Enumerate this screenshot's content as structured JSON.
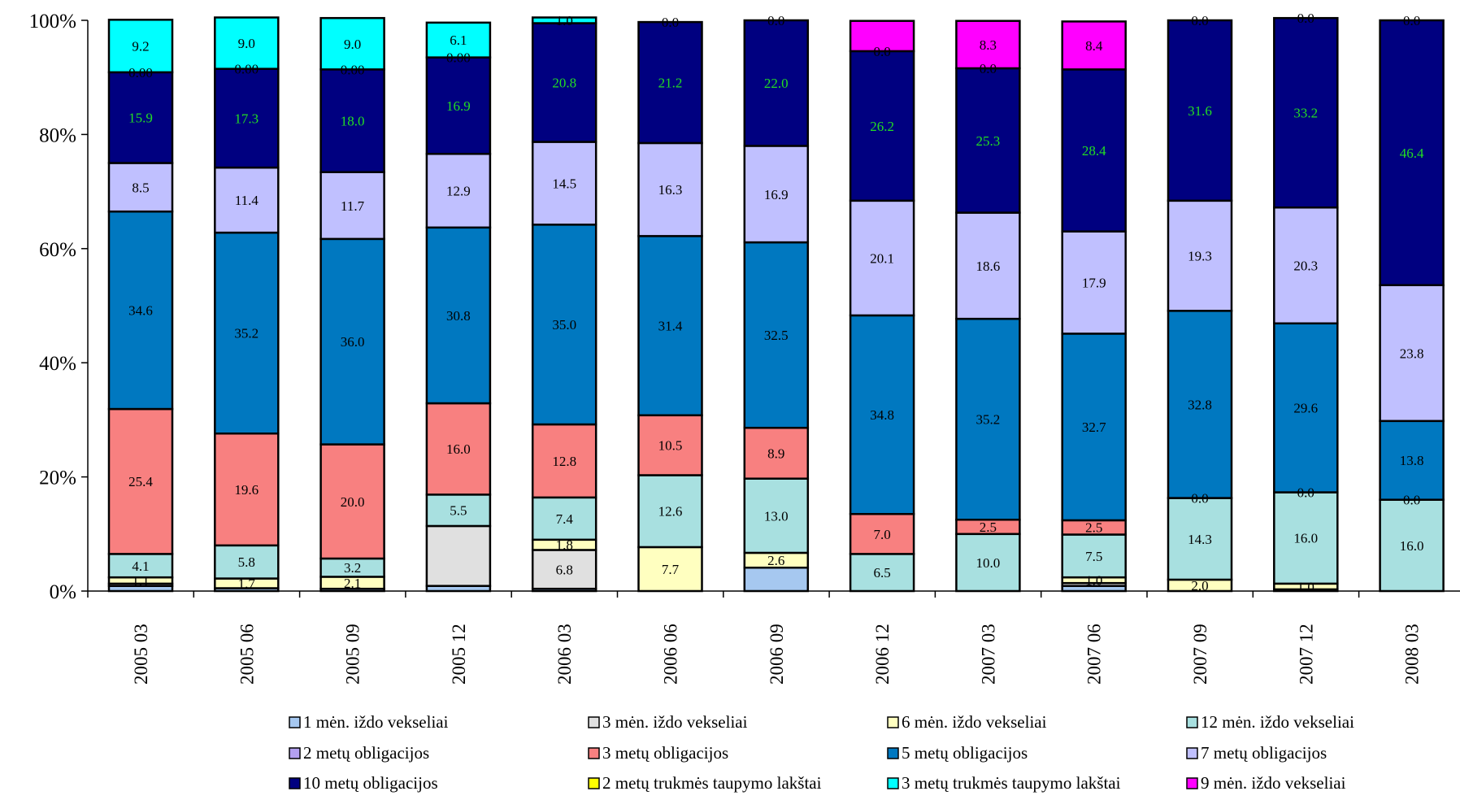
{
  "chart_data": {
    "type": "bar",
    "stacked": true,
    "percent_stacked": true,
    "categories": [
      "2005 03",
      "2005 06",
      "2005 09",
      "2005 12",
      "2006 03",
      "2006 06",
      "2006 09",
      "2006 12",
      "2007 03",
      "2007 06",
      "2007 09",
      "2007 12",
      "2008 03"
    ],
    "y_ticks": [
      "0%",
      "20%",
      "40%",
      "60%",
      "80%",
      "100%"
    ],
    "ylim": [
      0,
      100
    ],
    "legend_position": "bottom",
    "series": [
      {
        "name": "1 mėn. iždo vekseliai",
        "color": "#a6c8f0",
        "values": [
          0.9,
          0.5,
          0.4,
          0.9,
          0.4,
          0.0,
          4.1,
          0.0,
          0.0,
          0.9,
          0.0,
          0.3,
          0.0
        ],
        "labels": [
          "",
          "",
          "",
          "",
          "",
          "",
          "",
          "",
          "",
          "",
          "",
          "",
          ""
        ]
      },
      {
        "name": "3 mėn. iždo vekseliai",
        "color": "#e0e0e0",
        "values": [
          0.4,
          0.0,
          0.0,
          10.5,
          6.8,
          0.0,
          0.0,
          0.0,
          0.0,
          0.5,
          0.0,
          0.0,
          0.0
        ],
        "labels": [
          "",
          "",
          "",
          "",
          "6.8",
          "",
          "",
          "",
          "",
          "",
          "",
          "",
          ""
        ]
      },
      {
        "name": "6 mėn. iždo vekseliai",
        "color": "#ffffc0",
        "values": [
          1.1,
          1.7,
          2.1,
          0.0,
          1.8,
          7.7,
          2.6,
          0.0,
          0.0,
          1.0,
          2.0,
          1.0,
          0.0
        ],
        "labels": [
          "1.1",
          "1.7",
          "2.1",
          "",
          "1.8",
          "7.7",
          "2.6",
          "",
          "",
          "1.0",
          "2.0",
          "1.0",
          ""
        ]
      },
      {
        "name": "12 mėn. iždo vekseliai",
        "color": "#a8e0e0",
        "values": [
          4.1,
          5.8,
          3.2,
          5.5,
          7.4,
          12.6,
          13.0,
          6.5,
          10.0,
          7.5,
          14.3,
          16.0,
          16.0
        ],
        "labels": [
          "4.1",
          "5.8",
          "3.2",
          "5.5",
          "7.4",
          "12.6",
          "13.0",
          "6.5",
          "10.0",
          "7.5",
          "14.3",
          "16.0",
          "16.0"
        ]
      },
      {
        "name": "2 metų obligacijos",
        "color": "#b3a0f0",
        "values": [
          0,
          0,
          0,
          0,
          0,
          0,
          0,
          0,
          0,
          0,
          0,
          0,
          0
        ],
        "labels": [
          "",
          "",
          "",
          "",
          "",
          "",
          "",
          "",
          "",
          "",
          "",
          "",
          ""
        ]
      },
      {
        "name": "3 metų obligacijos",
        "color": "#f88080",
        "values": [
          25.4,
          19.6,
          20.0,
          16.0,
          12.8,
          10.5,
          8.9,
          7.0,
          2.5,
          2.5,
          0.0,
          0.0,
          0.0
        ],
        "labels": [
          "25.4",
          "19.6",
          "20.0",
          "16.0",
          "12.8",
          "10.5",
          "8.9",
          "7.0",
          "2.5",
          "2.5",
          "0.0",
          "0.0",
          "0.0"
        ]
      },
      {
        "name": "5 metų obligacijos",
        "color": "#0078c0",
        "values": [
          34.6,
          35.2,
          36.0,
          30.8,
          35.0,
          31.4,
          32.5,
          34.8,
          35.2,
          32.7,
          32.8,
          29.6,
          13.8
        ],
        "labels": [
          "34.6",
          "35.2",
          "36.0",
          "30.8",
          "35.0",
          "31.4",
          "32.5",
          "34.8",
          "35.2",
          "32.7",
          "32.8",
          "29.6",
          "13.8"
        ]
      },
      {
        "name": "7 metų obligacijos",
        "color": "#c0c0ff",
        "values": [
          8.5,
          11.4,
          11.7,
          12.9,
          14.5,
          16.3,
          16.9,
          20.1,
          18.6,
          17.9,
          19.3,
          20.3,
          23.8
        ],
        "labels": [
          "8.5",
          "11.4",
          "11.7",
          "12.9",
          "14.5",
          "16.3",
          "16.9",
          "20.1",
          "18.6",
          "17.9",
          "19.3",
          "20.3",
          "23.8"
        ]
      },
      {
        "name": "10 metų obligacijos",
        "color": "#000080",
        "values": [
          15.9,
          17.3,
          18.0,
          16.9,
          20.8,
          21.2,
          22.0,
          26.2,
          25.3,
          28.4,
          31.6,
          33.2,
          46.4
        ],
        "labels": [
          "15.9",
          "17.3",
          "18.0",
          "16.9",
          "20.8",
          "21.2",
          "22.0",
          "26.2",
          "25.3",
          "28.4",
          "31.6",
          "33.2",
          "46.4"
        ]
      },
      {
        "name": "2 metų trukmės taupymo lakštai",
        "color": "#ffff00",
        "values": [
          0,
          0,
          0,
          0,
          0,
          0,
          0,
          0,
          0,
          0,
          0,
          0,
          0
        ],
        "labels": [
          "0.00",
          "0.00",
          "0.00",
          "0.00",
          "",
          "0.0",
          "0.0",
          "0.0",
          "0.0",
          "",
          "",
          "",
          ""
        ]
      },
      {
        "name": "3 metų trukmės taupymo lakštai",
        "color": "#00ffff",
        "values": [
          9.2,
          9.0,
          9.0,
          6.1,
          1.0,
          0,
          0,
          0,
          0,
          0,
          0,
          0,
          0
        ],
        "labels": [
          "9.2",
          "9.0",
          "9.0",
          "6.1",
          "1.0",
          "",
          "",
          "",
          "",
          "",
          "0.0",
          "0.0",
          "0.0"
        ]
      },
      {
        "name": "9 mėn. iždo vekseliai",
        "color": "#ff00ff",
        "values": [
          0,
          0,
          0,
          0,
          0,
          0,
          0,
          5.3,
          8.3,
          8.4,
          0,
          0,
          0
        ],
        "labels": [
          "",
          "",
          "",
          "",
          "",
          "",
          "",
          "",
          "8.3",
          "8.4",
          "",
          "",
          ""
        ]
      }
    ]
  }
}
